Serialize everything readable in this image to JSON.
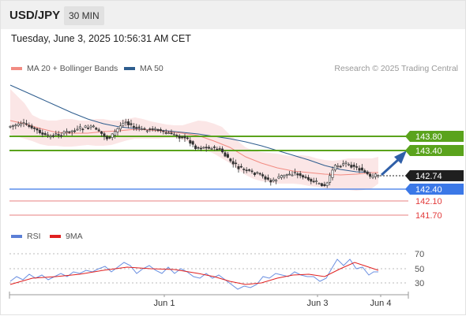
{
  "header": {
    "symbol": "USD/JPY",
    "timeframe": "30 MIN"
  },
  "timestamp": "Tuesday, June 3, 2025 10:56:31 AM CET",
  "legend": {
    "items": [
      {
        "label": "MA 20 + Bollinger Bands",
        "color": "#f28b82"
      },
      {
        "label": "MA 50",
        "color": "#2e5d8e"
      }
    ],
    "copyright": "Research © 2025 Trading Central"
  },
  "levels": [
    {
      "label": "143.80",
      "kind": "resistance",
      "color": "#5aa31c"
    },
    {
      "label": "143.40",
      "kind": "resistance",
      "color": "#5aa31c"
    },
    {
      "label": "142.74",
      "kind": "last price",
      "color": "#222222"
    },
    {
      "label": "142.40",
      "kind": "pivot",
      "color": "#3b78e7"
    },
    {
      "label": "142.10",
      "kind": "support",
      "color": "#e23b3b"
    },
    {
      "label": "141.70",
      "kind": "support",
      "color": "#e23b3b"
    }
  ],
  "rsi_legend": {
    "items": [
      {
        "label": "RSI",
        "color": "#5b7fd6"
      },
      {
        "label": "9MA",
        "color": "#e02020"
      }
    ]
  },
  "rsi_ticks": [
    "70",
    "50",
    "30"
  ],
  "x_axis": {
    "labels": [
      "Jun 1",
      "Jun 3",
      "Jun 4"
    ]
  }
}
